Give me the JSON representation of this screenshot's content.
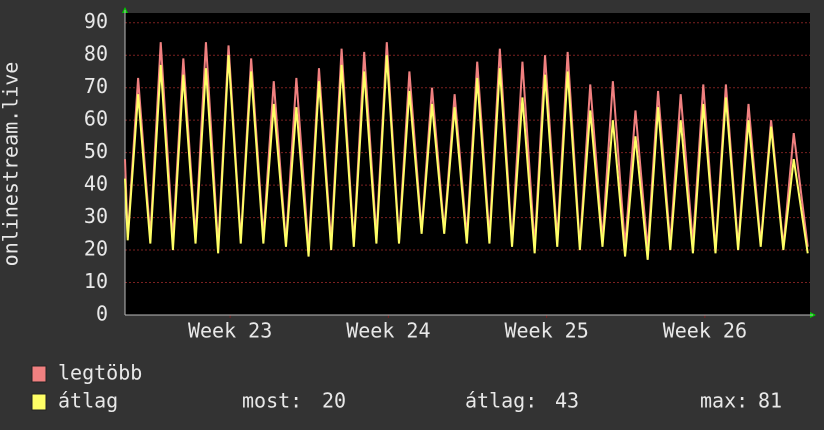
{
  "chart_data": {
    "type": "line",
    "y_label": "onlinestream.live",
    "x": [
      0,
      0.12,
      0.58,
      1.12,
      1.58,
      2.12,
      2.58,
      3.12,
      3.58,
      4.12,
      4.58,
      5.12,
      5.58,
      6.12,
      6.58,
      7.12,
      7.58,
      8.12,
      8.58,
      9.12,
      9.58,
      10.12,
      10.58,
      11.12,
      11.58,
      12.12,
      12.58,
      13.12,
      13.58,
      14.12,
      14.58,
      15.12,
      15.58,
      16.12,
      16.58,
      17.12,
      17.58,
      18.12,
      18.58,
      19.12,
      19.58,
      20.12,
      20.58,
      21.12,
      21.58,
      22.12,
      22.58,
      23.12,
      23.58,
      24.12,
      24.58,
      25.12,
      25.58,
      26.12,
      26.58,
      27.12,
      27.58,
      28.12,
      28.58,
      29.12,
      29.58,
      30.2
    ],
    "series": [
      {
        "name": "legtöbb",
        "color": "#f08080",
        "values": [
          48,
          24,
          73,
          24,
          84,
          23,
          79,
          24,
          84,
          21,
          83,
          23,
          79,
          24,
          72,
          22,
          73,
          20,
          76,
          22,
          82,
          22,
          81,
          24,
          84,
          23,
          75,
          26,
          70,
          26,
          68,
          24,
          78,
          24,
          82,
          22,
          78,
          21,
          80,
          23,
          81,
          21,
          71,
          23,
          72,
          21,
          63,
          20,
          69,
          22,
          68,
          22,
          71,
          20,
          71,
          21,
          65,
          22,
          60,
          21,
          56,
          21
        ]
      },
      {
        "name": "átlag",
        "color": "#ffff66",
        "values": [
          42,
          23,
          68,
          22,
          77,
          20,
          74,
          22,
          76,
          19,
          80,
          22,
          75,
          22,
          65,
          21,
          64,
          18,
          72,
          20,
          77,
          21,
          75,
          22,
          80,
          22,
          69,
          25,
          65,
          25,
          64,
          22,
          73,
          22,
          76,
          21,
          67,
          19,
          74,
          21,
          75,
          20,
          63,
          21,
          60,
          18,
          55,
          17,
          64,
          20,
          60,
          19,
          65,
          19,
          67,
          20,
          60,
          21,
          58,
          20,
          48,
          19
        ]
      }
    ],
    "xlim": [
      0,
      30.3
    ],
    "xticks": [
      {
        "value": 4.65,
        "label": "Week 23"
      },
      {
        "value": 11.65,
        "label": "Week 24"
      },
      {
        "value": 18.65,
        "label": "Week 25"
      },
      {
        "value": 25.65,
        "label": "Week 26"
      }
    ],
    "ylim": [
      0,
      93
    ],
    "yticks": [
      0,
      10,
      20,
      30,
      40,
      50,
      60,
      70,
      80,
      90
    ],
    "grid": true,
    "stats": [
      {
        "label": "most:",
        "value": 20
      },
      {
        "label": "átlag:",
        "value": 43
      },
      {
        "label": "max:",
        "value": 81
      }
    ]
  }
}
